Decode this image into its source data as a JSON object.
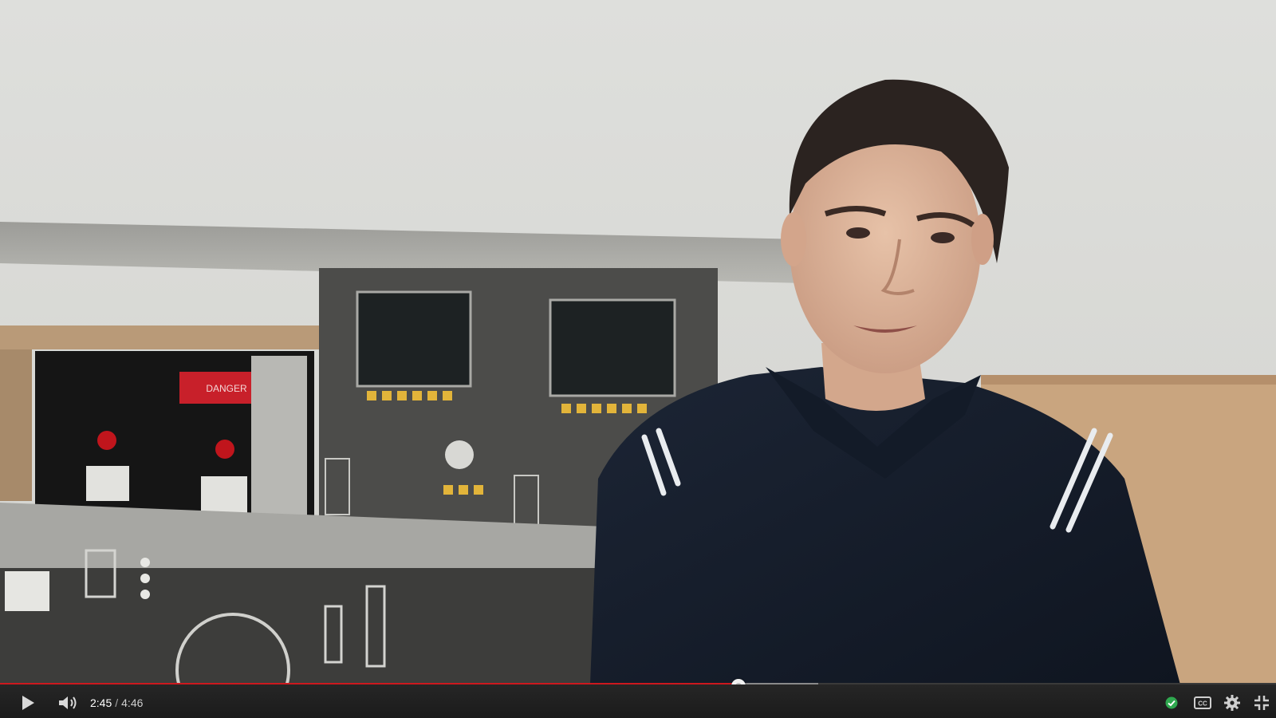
{
  "player": {
    "current_time": "2:45",
    "separator": "/",
    "duration": "4:46",
    "progress_played_fraction": 0.579,
    "progress_buffered_fraction": 0.641,
    "accent_color": "#cc181e",
    "icons": {
      "play": "play-icon",
      "volume": "volume-icon",
      "status": "checkmark-icon",
      "captions": "closed-captions-icon",
      "settings": "gear-icon",
      "fullscreen": "exit-fullscreen-icon"
    }
  },
  "video": {
    "panel_label": "DANGER"
  }
}
